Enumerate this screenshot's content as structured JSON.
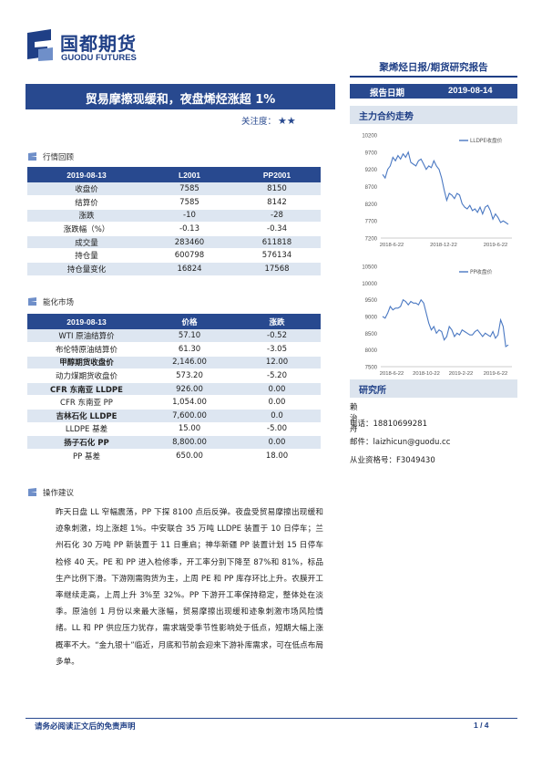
{
  "brand": {
    "name_cn": "国都期货",
    "name_en": "GUODU FUTURES"
  },
  "report_type": "聚烯烃日报/期货研究报告",
  "title": "贸易摩擦现缓和，夜盘烯烃涨超 1%",
  "attention": {
    "label": "关注度：",
    "stars": "★★"
  },
  "report_date": {
    "label": "报告日期",
    "value": "2019-08-14"
  },
  "sidebar": {
    "main_contract_title": "主力合约走势",
    "research_title": "研究所"
  },
  "market_review": {
    "label": "行情回顾",
    "headers": [
      "2019-08-13",
      "L2001",
      "PP2001"
    ],
    "rows": [
      [
        "收盘价",
        "7585",
        "8150"
      ],
      [
        "结算价",
        "7585",
        "8142"
      ],
      [
        "涨跌",
        "-10",
        "-28"
      ],
      [
        "涨跌幅（%）",
        "-0.13",
        "-0.34"
      ],
      [
        "成交量",
        "283460",
        "611818"
      ],
      [
        "持仓量",
        "600798",
        "576134"
      ],
      [
        "持仓量变化",
        "16824",
        "17568"
      ]
    ]
  },
  "energy_chem": {
    "label": "能化市场",
    "headers": [
      "2019-08-13",
      "价格",
      "涨跌"
    ],
    "rows": [
      [
        "WTI 原油结算价",
        "57.10",
        "-0.52"
      ],
      [
        "布伦特原油结算价",
        "61.30",
        "-3.05"
      ],
      [
        "甲醇期货收盘价",
        "2,146.00",
        "12.00"
      ],
      [
        "动力煤期货收盘价",
        "573.20",
        "-5.20"
      ],
      [
        "CFR 东南亚 LLDPE",
        "926.00",
        "0.00"
      ],
      [
        "CFR 东南亚 PP",
        "1,054.00",
        "0.00"
      ],
      [
        "吉林石化 LLDPE",
        "7,600.00",
        "0.0"
      ],
      [
        "LLDPE 基差",
        "15.00",
        "-5.00"
      ],
      [
        "扬子石化 PP",
        "8,800.00",
        "0.00"
      ],
      [
        "PP 基差",
        "650.00",
        "18.00"
      ]
    ]
  },
  "advice": {
    "label": "操作建议",
    "text": "昨天日盘 LL 窄幅震荡，PP 下探 8100 点后反弹。夜盘受贸易摩擦出现缓和迹象刺激，均上涨超 1%。中安联合 35 万吨 LLDPE 装置于 10 日停车；兰州石化 30 万吨 PP 新装置于 11 日重启；神华新疆 PP 装置计划 15 日停车检修 40 天。PE 和 PP 进入检修季，开工率分别下降至 87%和 81%，标品生产比例下滑。下游刚需购货为主，上周 PE 和 PP 库存环比上升。农膜开工率继续走高，上周上升 3%至 32%。PP 下游开工率保持稳定，整体处在淡季。原油创 1 月份以来最大涨幅，贸易摩擦出现缓和迹象刺激市场风险情绪。LL 和 PP 供应压力犹存，需求端受季节性影响处于低点，短期大幅上涨概率不大。“金九银十”临近，月底和节前会迎来下游补库需求，可在低点布局多单。"
  },
  "research": {
    "name": "赖治舟",
    "phone": "电话：18810699281",
    "email": "邮件：laizhicun@guodu.cc",
    "cert": "从业资格号：F3049430"
  },
  "footer": {
    "disclaimer": "请务必阅读正文后的免责声明",
    "page": "1 / 4"
  },
  "colors": {
    "brand_blue": "#28498f",
    "line_blue": "#4a78c2",
    "row_shade": "#dde6f1"
  },
  "chart_data": [
    {
      "type": "line",
      "title": "",
      "series": [
        {
          "name": "LLDPE收盘价",
          "values": [
            9050,
            8950,
            9200,
            9300,
            9550,
            9450,
            9600,
            9500,
            9650,
            9550,
            9700,
            9400,
            9350,
            9300,
            9450,
            9500,
            9350,
            9200,
            9300,
            9250,
            9450,
            9300,
            9200,
            8950,
            8600,
            8300,
            8500,
            8450,
            8350,
            8500,
            8450,
            8200,
            8100,
            8050,
            8150,
            8000,
            8050,
            7950,
            8100,
            7900,
            8100,
            8150,
            8000,
            7750,
            7900,
            7800,
            7650,
            7700,
            7650,
            7600
          ]
        }
      ],
      "x_ticks": [
        "2018-6-22",
        "2018-12-22",
        "2019-6-22"
      ],
      "y_ticks": [
        "7200",
        "7700",
        "8200",
        "8700",
        "9200",
        "9700",
        "10200"
      ],
      "ylim": [
        7200,
        10200
      ],
      "legend": "top-right"
    },
    {
      "type": "line",
      "title": "",
      "series": [
        {
          "name": "PP收盘价",
          "values": [
            9000,
            8950,
            9100,
            9300,
            9200,
            9250,
            9250,
            9300,
            9500,
            9450,
            9350,
            9450,
            9400,
            9400,
            9350,
            9500,
            9400,
            9100,
            8800,
            8600,
            8700,
            8500,
            8600,
            8550,
            8300,
            8400,
            8700,
            8600,
            8400,
            8500,
            8450,
            8600,
            8550,
            8500,
            8450,
            8450,
            8550,
            8600,
            8500,
            8400,
            8500,
            8450,
            8400,
            8550,
            8350,
            8450,
            8900,
            8700,
            8100,
            8150
          ]
        }
      ],
      "x_ticks": [
        "2018-6-22",
        "2018-10-22",
        "2019-2-22",
        "2019-6-22"
      ],
      "y_ticks": [
        "7500",
        "8000",
        "8500",
        "9000",
        "9500",
        "10000",
        "10500"
      ],
      "ylim": [
        7500,
        10500
      ],
      "legend": "top-right"
    }
  ]
}
